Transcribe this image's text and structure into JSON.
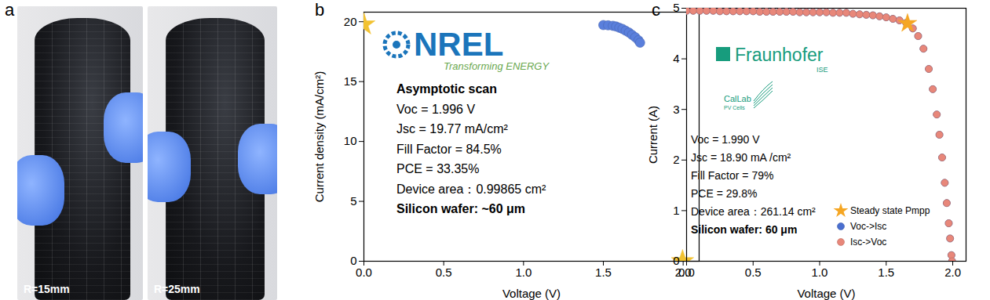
{
  "photos": {
    "panel": "a",
    "captions": [
      "R=15mm",
      "R=25mm"
    ]
  },
  "chart_data": [
    {
      "type": "scatter",
      "panel": "b",
      "x_label": "Voltage (V)",
      "y_label": "Current density (mA/cm²)",
      "logo": [
        "NREL",
        "Transforming ENERGY"
      ],
      "heading": "Asymptotic scan",
      "annotations": [
        "Voc = 1.996 V",
        "Jsc = 19.77 mA/cm²",
        "Fill Factor = 84.5%",
        "PCE = 33.35%",
        "Device area：0.99865 cm²"
      ],
      "note": "Silicon wafer: ~60 μm",
      "xlim": [
        0,
        2.1
      ],
      "ylim": [
        0,
        20.8
      ],
      "xticks": [
        {
          "value": 0,
          "label": "0.0"
        },
        0.5,
        {
          "value": 1,
          "label": "1.0"
        },
        1.5,
        {
          "value": 2,
          "label": "2.0"
        }
      ],
      "yticks": [
        0,
        5,
        10,
        15,
        20
      ],
      "series": [
        {
          "color": "#5a7fdc",
          "marker": "circle",
          "x": [
            1.5,
            1.53,
            1.56,
            1.58,
            1.6,
            1.62,
            1.64,
            1.66,
            1.68,
            1.7,
            1.72,
            1.73
          ],
          "values": [
            19.72,
            19.7,
            19.66,
            19.6,
            19.5,
            19.4,
            19.25,
            19.1,
            18.9,
            18.7,
            18.45,
            18.25
          ]
        },
        {
          "color": "#f2c230",
          "marker": "star",
          "x": [
            0,
            1.996
          ],
          "values": [
            19.77,
            0
          ]
        }
      ]
    },
    {
      "type": "scatter",
      "panel": "c",
      "x_label": "Voltage (V)",
      "y_label": "Current (A)",
      "logo": [
        "Fraunhofer",
        "ISE"
      ],
      "logo2": [
        "CalLab",
        "PV Cells"
      ],
      "annotations": [
        "Voc = 1.990 V",
        "Jsc = 18.90 mA /cm²",
        "Fill Factor = 79%",
        "PCE = 29.8%",
        "Device area：261.14 cm²"
      ],
      "note": "Silicon wafer: 60 μm",
      "xlim": [
        0,
        2.1
      ],
      "ylim": [
        0,
        5
      ],
      "xticks": [
        {
          "value": 0,
          "label": "0.0"
        },
        0.5,
        {
          "value": 1,
          "label": "1.0"
        },
        1.5,
        {
          "value": 2,
          "label": "2.0"
        }
      ],
      "yticks": [
        0,
        1,
        2,
        3,
        4,
        5
      ],
      "legend": "bottom-right",
      "series": [
        {
          "name": "Steady state Pmpp",
          "color": "#f5a623",
          "marker": "star",
          "x": [
            1.66
          ],
          "values": [
            4.7
          ]
        },
        {
          "name": "Voc->Isc",
          "color": "#4a6fd0",
          "marker": "circle",
          "x": [
            0,
            0.05,
            0.1,
            0.15,
            0.2,
            0.25,
            0.3,
            0.35,
            0.4,
            0.45,
            0.5,
            0.55,
            0.6,
            0.65,
            0.7,
            0.75,
            0.8,
            0.85,
            0.9,
            0.95,
            1.0,
            1.05,
            1.1,
            1.15,
            1.2,
            1.25,
            1.3,
            1.35,
            1.4,
            1.45,
            1.5,
            1.55,
            1.6,
            1.65,
            1.7,
            1.74,
            1.78,
            1.82,
            1.85,
            1.88,
            1.9,
            1.92,
            1.94,
            1.955,
            1.97,
            1.98,
            1.99,
            1.995
          ],
          "values": [
            4.95,
            4.95,
            4.95,
            4.95,
            4.95,
            4.94,
            4.94,
            4.94,
            4.94,
            4.94,
            4.94,
            4.93,
            4.93,
            4.93,
            4.93,
            4.93,
            4.93,
            4.92,
            4.92,
            4.92,
            4.92,
            4.92,
            4.91,
            4.91,
            4.91,
            4.89,
            4.88,
            4.87,
            4.86,
            4.84,
            4.82,
            4.79,
            4.76,
            4.71,
            4.6,
            4.45,
            4.2,
            3.8,
            3.4,
            2.9,
            2.5,
            2.05,
            1.55,
            1.15,
            0.75,
            0.45,
            0.12,
            0
          ]
        },
        {
          "name": "Isc->Voc",
          "color": "#e8877a",
          "marker": "circle",
          "x": [
            0,
            0.05,
            0.1,
            0.15,
            0.2,
            0.25,
            0.3,
            0.35,
            0.4,
            0.45,
            0.5,
            0.55,
            0.6,
            0.65,
            0.7,
            0.75,
            0.8,
            0.85,
            0.9,
            0.95,
            1.0,
            1.05,
            1.1,
            1.15,
            1.2,
            1.25,
            1.3,
            1.35,
            1.4,
            1.45,
            1.5,
            1.55,
            1.6,
            1.65,
            1.7,
            1.74,
            1.78,
            1.82,
            1.85,
            1.88,
            1.9,
            1.92,
            1.94,
            1.955,
            1.97,
            1.98,
            1.99,
            1.995
          ],
          "values": [
            4.95,
            4.95,
            4.95,
            4.95,
            4.95,
            4.94,
            4.94,
            4.94,
            4.94,
            4.94,
            4.94,
            4.93,
            4.93,
            4.93,
            4.93,
            4.93,
            4.93,
            4.92,
            4.92,
            4.92,
            4.92,
            4.92,
            4.91,
            4.91,
            4.91,
            4.89,
            4.88,
            4.87,
            4.86,
            4.84,
            4.82,
            4.79,
            4.76,
            4.71,
            4.6,
            4.45,
            4.2,
            3.8,
            3.4,
            2.9,
            2.5,
            2.05,
            1.55,
            1.15,
            0.75,
            0.45,
            0.12,
            0
          ]
        }
      ]
    }
  ]
}
